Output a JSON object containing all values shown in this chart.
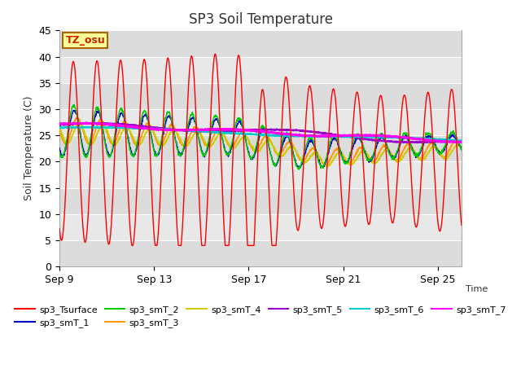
{
  "title": "SP3 Soil Temperature",
  "ylabel": "Soil Temperature (C)",
  "xlabel": "Time",
  "tz_label": "TZ_osu",
  "ylim": [
    0,
    45
  ],
  "xtick_labels": [
    "Sep 9",
    "Sep 13",
    "Sep 17",
    "Sep 21",
    "Sep 25"
  ],
  "xtick_positions": [
    0,
    4,
    8,
    12,
    16
  ],
  "series_colors": {
    "sp3_Tsurface": "#FF0000",
    "sp3_smT_1": "#0000CC",
    "sp3_smT_2": "#00CC00",
    "sp3_smT_3": "#FF9900",
    "sp3_smT_4": "#CCCC00",
    "sp3_smT_5": "#9900CC",
    "sp3_smT_6": "#00CCCC",
    "sp3_smT_7": "#FF00FF"
  },
  "title_fontsize": 12,
  "label_fontsize": 9,
  "tick_fontsize": 9,
  "legend_fontsize": 8,
  "annotation_box_color": "#FFFF99",
  "annotation_box_edge": "#AA6600",
  "fig_bg": "#FFFFFF",
  "plot_bg": "#E8E8E8",
  "band_colors": [
    "#DCDCDC",
    "#E8E8E8"
  ]
}
